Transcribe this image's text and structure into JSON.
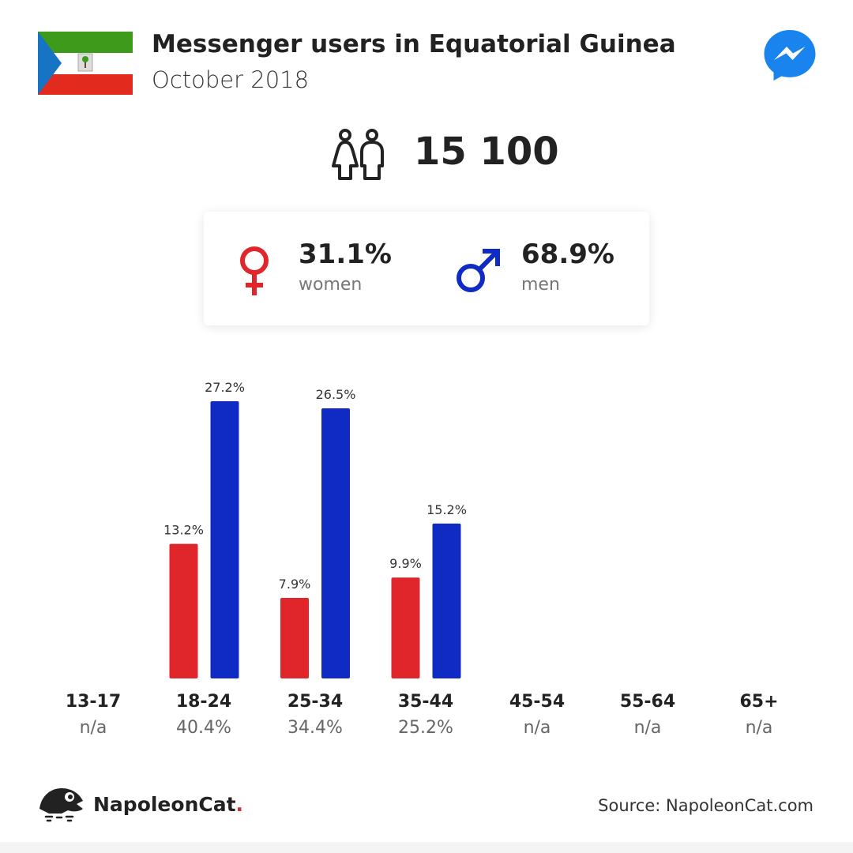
{
  "header": {
    "title": "Messenger users in Equatorial Guinea",
    "subtitle": "October 2018",
    "flag_icon": "equatorial-guinea-flag",
    "app_icon": "messenger-icon"
  },
  "total": {
    "value": "15 100",
    "icon": "users-icon"
  },
  "gender": {
    "women": {
      "percent": "31.1%",
      "label": "women",
      "color": "#e0262a",
      "icon": "female-symbol-icon"
    },
    "men": {
      "percent": "68.9%",
      "label": "men",
      "color": "#0f2bc4",
      "icon": "male-symbol-icon"
    }
  },
  "chart_data": {
    "type": "bar",
    "categories": [
      "13-17",
      "18-24",
      "25-34",
      "35-44",
      "45-54",
      "55-64",
      "65+"
    ],
    "group_totals": [
      "n/a",
      "40.4%",
      "34.4%",
      "25.2%",
      "n/a",
      "n/a",
      "n/a"
    ],
    "series": [
      {
        "color": "#e0262a",
        "values": [
          null,
          13.2,
          7.9,
          9.9,
          null,
          null,
          null
        ],
        "labels": [
          "",
          "13.2%",
          "7.9%",
          "9.9%",
          "",
          "",
          ""
        ]
      },
      {
        "color": "#0f2bc4",
        "values": [
          null,
          27.2,
          26.5,
          15.2,
          null,
          null,
          null
        ],
        "labels": [
          "",
          "27.2%",
          "26.5%",
          "15.2%",
          "",
          "",
          ""
        ]
      }
    ],
    "ylim": [
      0,
      27.2
    ],
    "grid": false
  },
  "footer": {
    "brand_name": "NapoleonCat",
    "brand_dot": ".",
    "source": "Source: NapoleonCat.com",
    "logo_icon": "napoleoncat-logo-icon"
  }
}
